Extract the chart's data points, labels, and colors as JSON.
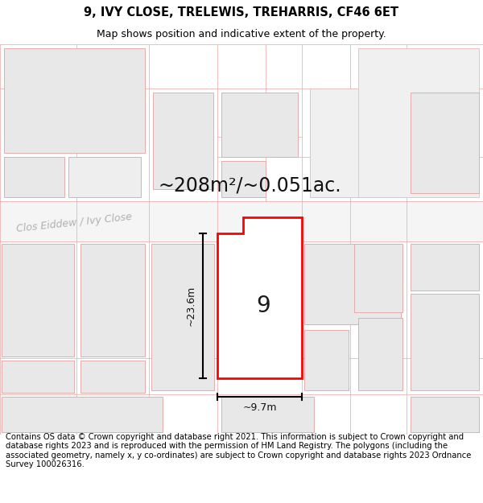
{
  "title": "9, IVY CLOSE, TRELEWIS, TREHARRIS, CF46 6ET",
  "subtitle": "Map shows position and indicative extent of the property.",
  "area_text": "~208m²/~0.051ac.",
  "street_label": "Clos Eiddew / Ivy Close",
  "plot_number": "9",
  "dim_height": "~23.6m",
  "dim_width": "~9.7m",
  "footer": "Contains OS data © Crown copyright and database right 2021. This information is subject to Crown copyright and database rights 2023 and is reproduced with the permission of HM Land Registry. The polygons (including the associated geometry, namely x, y co-ordinates) are subject to Crown copyright and database rights 2023 Ordnance Survey 100026316.",
  "map_bg": "#f8f8f8",
  "plot_fill": "#ffffff",
  "plot_edge": "#ff0000",
  "block_fill": "#e8e8e8",
  "block_edge": "#e8aaaa",
  "cad_line": "#f0aaaa",
  "title_fontsize": 10.5,
  "subtitle_fontsize": 9,
  "area_fontsize": 17,
  "plot_num_fontsize": 20,
  "dim_fontsize": 9,
  "street_fontsize": 9,
  "footer_fontsize": 7.2
}
